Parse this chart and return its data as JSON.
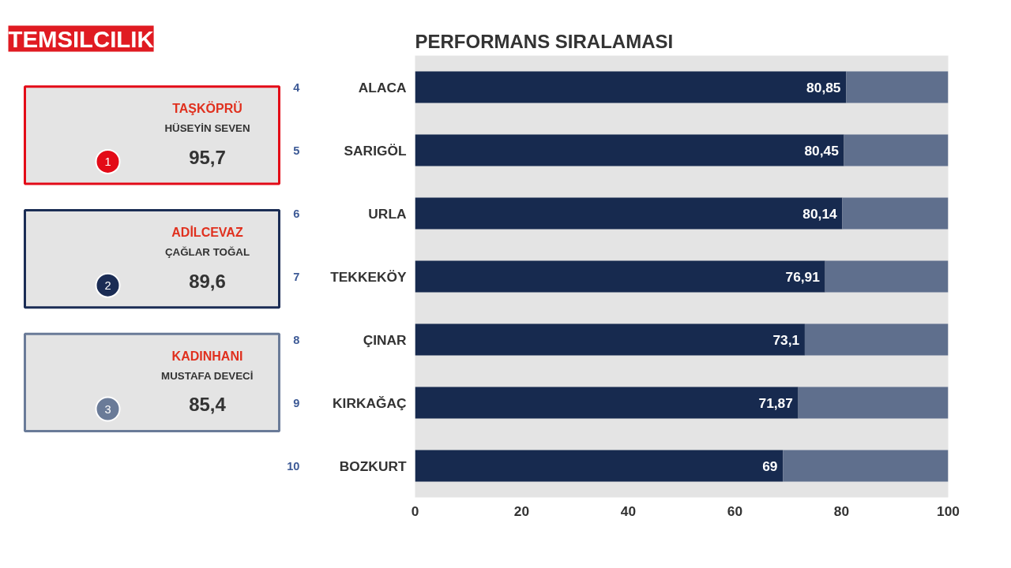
{
  "chart_data": {
    "type": "bar",
    "title": "TEMSILCILIK",
    "subtitle": "PERFORMANS SIRALAMASI",
    "orientation": "horizontal",
    "stacked": true,
    "categories": [
      "ALACA",
      "SARIGÖL",
      "URLA",
      "TEKKEKÖY",
      "ÇINAR",
      "KIRKAĞAÇ",
      "BOZKURT"
    ],
    "series": [
      {
        "color": "#172a4f",
        "values": [
          80.85,
          80.45,
          80.14,
          76.91,
          73.1,
          71.87,
          69
        ],
        "value_labels": [
          "80,85",
          "80,45",
          "80,14",
          "76,91",
          "73,1",
          "71,87",
          "69"
        ]
      },
      {
        "color": "#5f6f8d",
        "values": [
          19.15,
          19.55,
          19.86,
          23.09,
          26.9,
          28.13,
          31
        ]
      }
    ],
    "xlim": [
      0,
      100
    ],
    "xticks": [
      0,
      20,
      40,
      60,
      80,
      100
    ],
    "annotations": [
      "1",
      "TAŞKÖPRÜ",
      "HÜSEYİN SEVEN",
      "95,7",
      "2",
      "ADİLCEVAZ",
      "ÇAĞLAR TOĞAL",
      "89,6",
      "3",
      "KADINHANI",
      "MUSTAFA DEVECİ",
      "85,4",
      "4",
      "5",
      "6",
      "7",
      "8",
      "9",
      "10"
    ]
  }
}
